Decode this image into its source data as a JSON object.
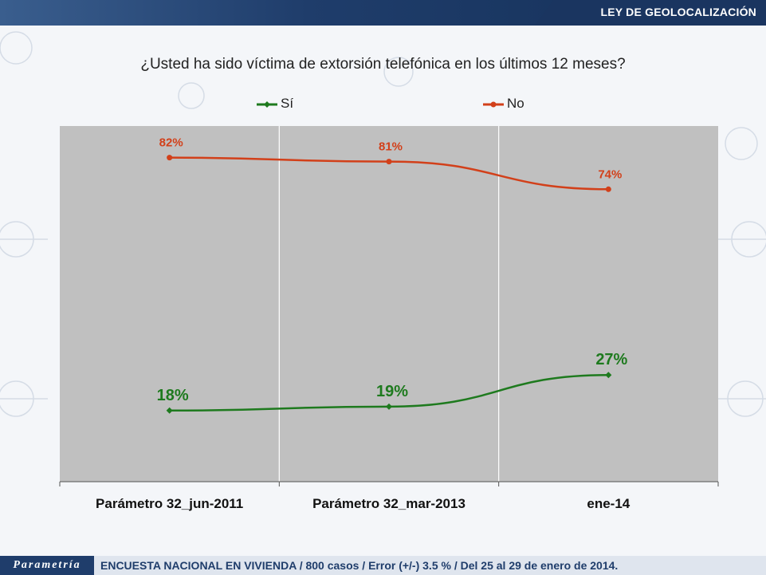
{
  "header": {
    "title": "LEY DE GEOLOCALIZACIÓN"
  },
  "question": "¿Usted ha sido víctima de extorsión telefónica en los últimos 12 meses?",
  "footer": {
    "logo": "Parametría",
    "note": "ENCUESTA NACIONAL EN VIVIENDA / 800 casos / Error (+/-) 3.5 % / Del 25 al 29 de enero de 2014."
  },
  "colors": {
    "si": "#1e7a1e",
    "no": "#d2401a",
    "plot_bg": "#c0c0c0"
  },
  "chart_data": {
    "type": "line",
    "categories": [
      "Parámetro 32_jun-2011",
      "Parámetro 32_mar-2013",
      "ene-14"
    ],
    "series": [
      {
        "name": "Sí",
        "values": [
          18,
          19,
          27
        ],
        "labels": [
          "18%",
          "19%",
          "27%"
        ]
      },
      {
        "name": "No",
        "values": [
          82,
          81,
          74
        ],
        "labels": [
          "82%",
          "81%",
          "74%"
        ]
      }
    ],
    "ylim": [
      0,
      90
    ],
    "grid": "vertical",
    "legend": "top"
  }
}
